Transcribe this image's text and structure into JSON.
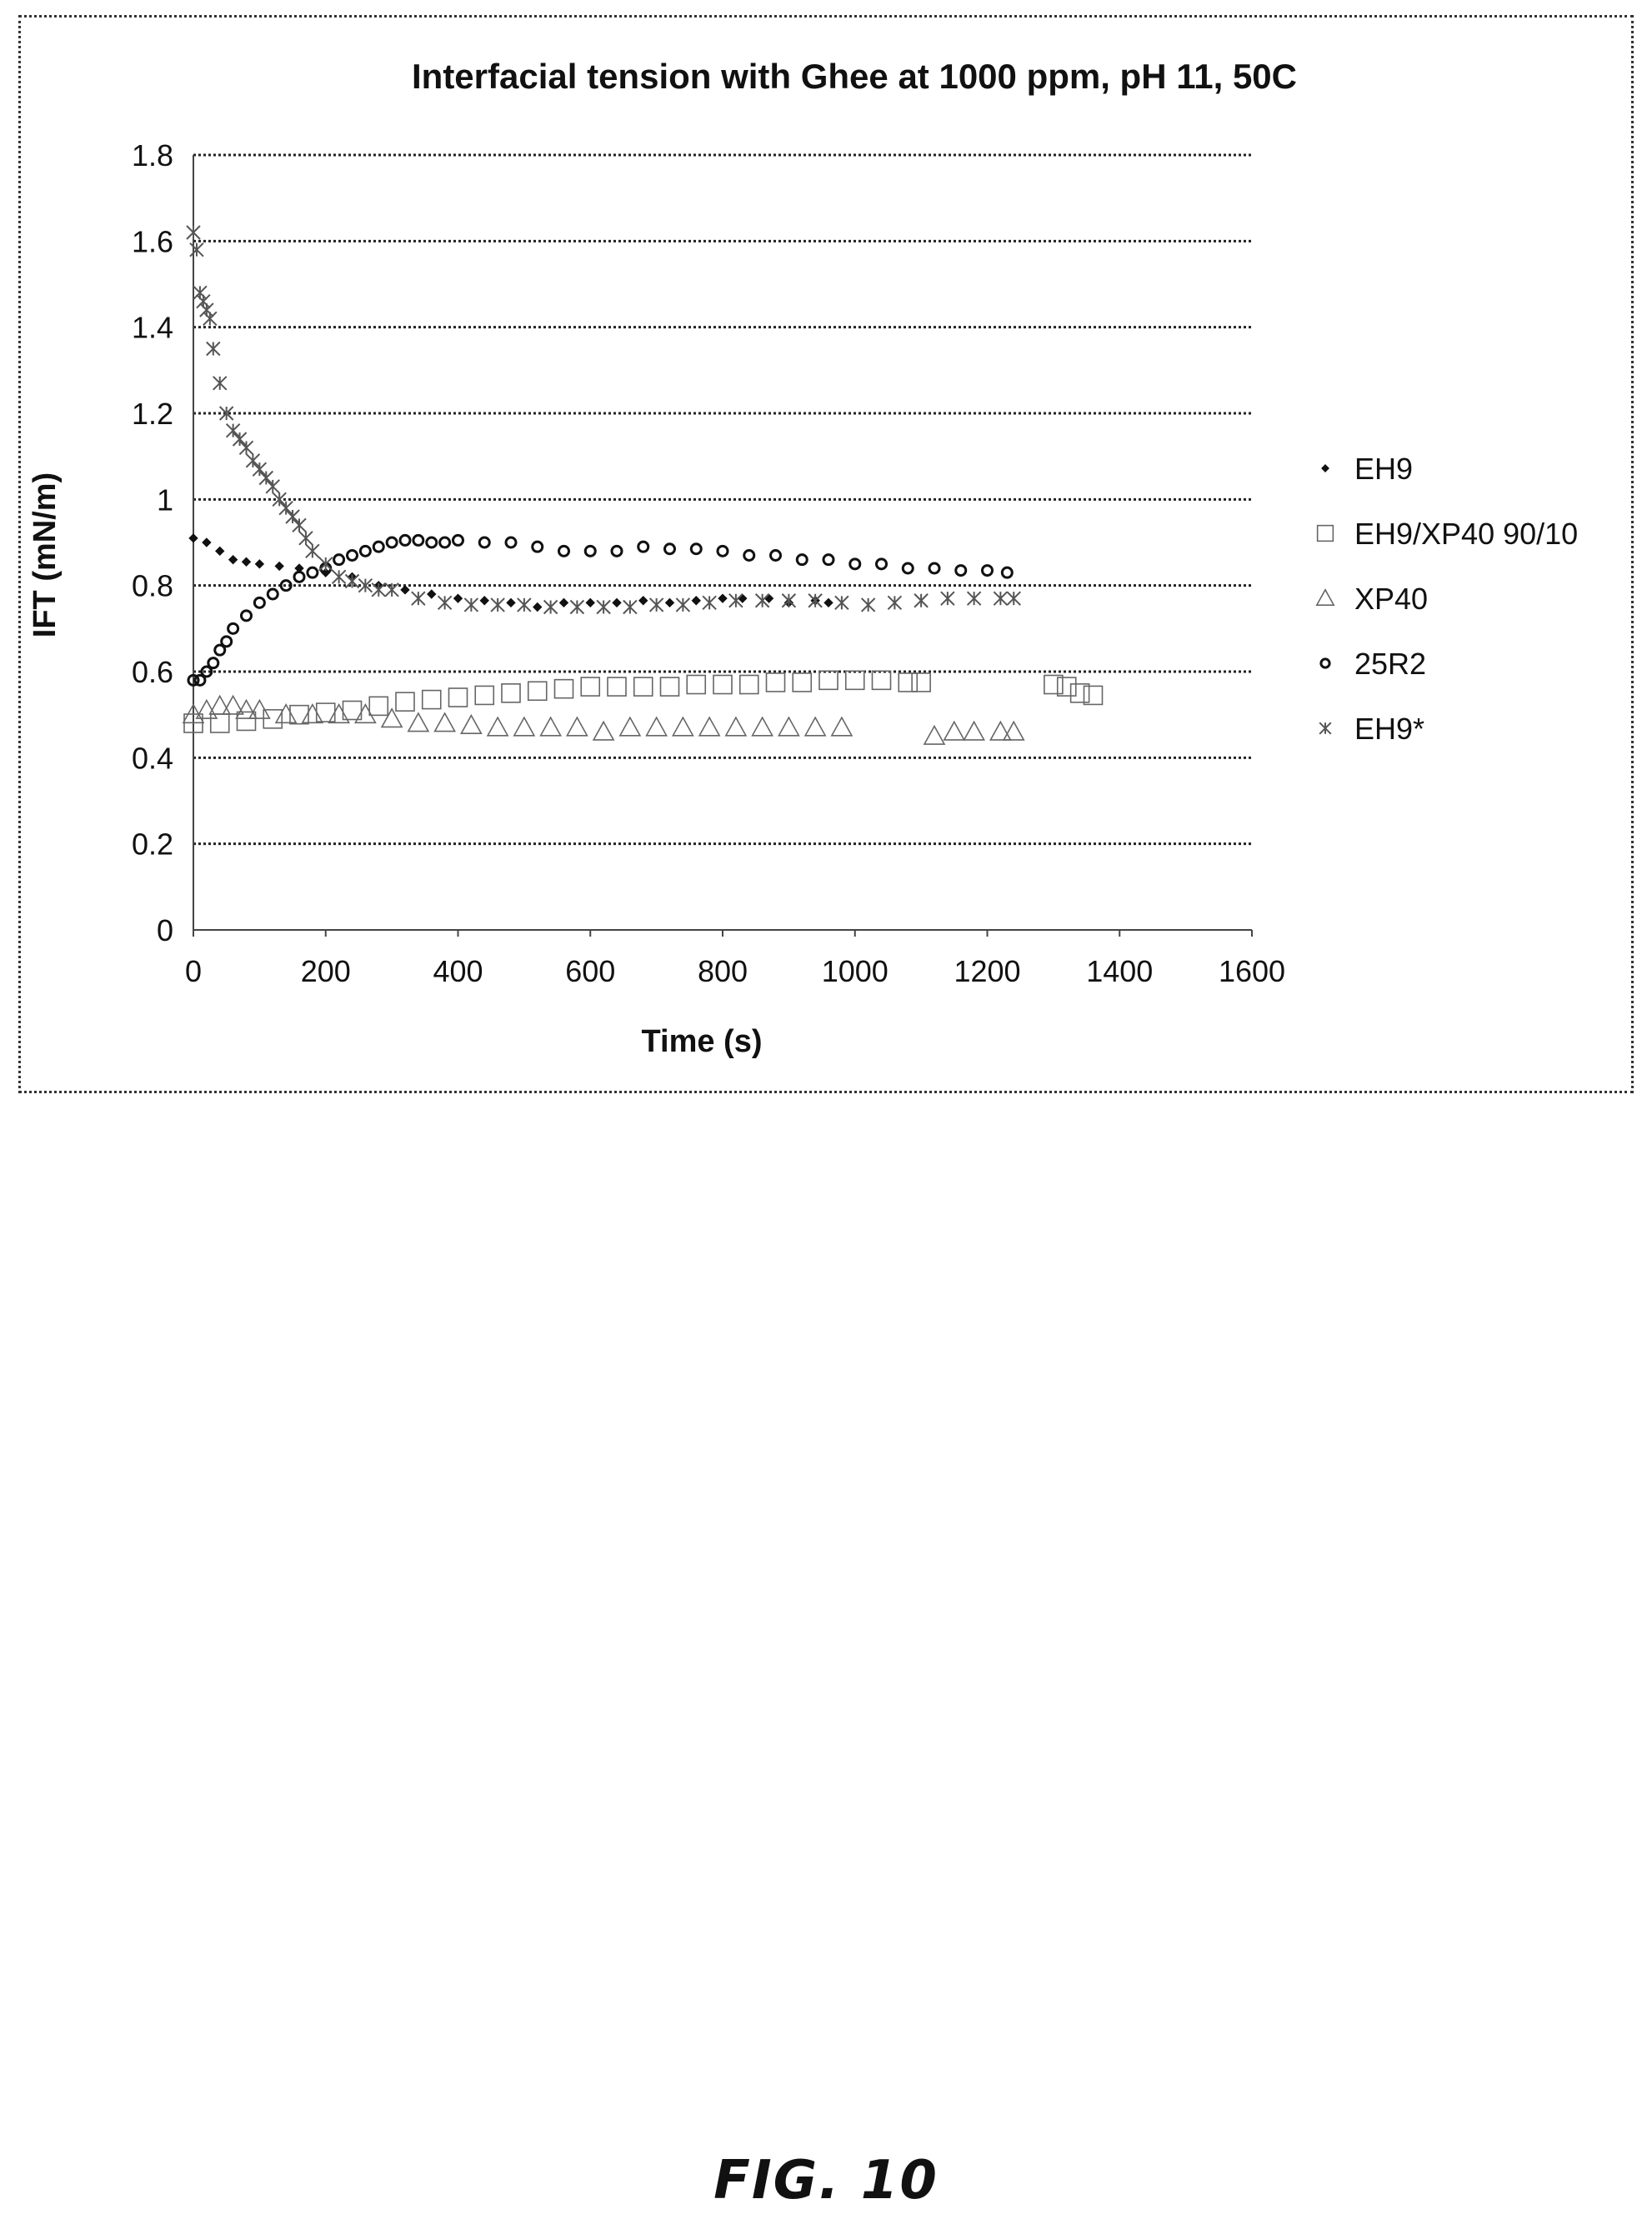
{
  "figure_caption": "FIG. 10",
  "chart_data": {
    "type": "scatter",
    "title": "Interfacial tension with Ghee at 1000 ppm, pH 11, 50C",
    "xlabel": "Time (s)",
    "ylabel": "IFT (mN/m)",
    "xlim": [
      0,
      1600
    ],
    "ylim": [
      0,
      1.8
    ],
    "x_ticks": [
      "0",
      "200",
      "400",
      "600",
      "800",
      "1000",
      "1200",
      "1400",
      "1600"
    ],
    "y_ticks": [
      "0",
      "0.2",
      "0.4",
      "0.6",
      "0.8",
      "1",
      "1.2",
      "1.4",
      "1.6",
      "1.8"
    ],
    "grid": "horizontal dotted",
    "legend_position": "right",
    "series": [
      {
        "name": "EH9",
        "marker": "diamond-filled",
        "x": [
          0,
          20,
          40,
          60,
          80,
          100,
          130,
          160,
          200,
          240,
          280,
          320,
          360,
          400,
          440,
          480,
          520,
          560,
          600,
          640,
          680,
          720,
          760,
          800,
          830,
          870,
          900,
          940,
          960
        ],
        "y": [
          0.91,
          0.9,
          0.88,
          0.86,
          0.855,
          0.85,
          0.845,
          0.84,
          0.83,
          0.82,
          0.8,
          0.79,
          0.78,
          0.77,
          0.765,
          0.76,
          0.75,
          0.76,
          0.76,
          0.76,
          0.765,
          0.76,
          0.765,
          0.77,
          0.77,
          0.77,
          0.76,
          0.765,
          0.76
        ]
      },
      {
        "name": "EH9/XP40 90/10",
        "marker": "square-open",
        "x": [
          0,
          40,
          80,
          120,
          160,
          200,
          240,
          280,
          320,
          360,
          400,
          440,
          480,
          520,
          560,
          600,
          640,
          680,
          720,
          760,
          800,
          840,
          880,
          920,
          960,
          1000,
          1040,
          1080,
          1100,
          1300,
          1320,
          1340,
          1360
        ],
        "y": [
          0.48,
          0.48,
          0.485,
          0.49,
          0.5,
          0.505,
          0.51,
          0.52,
          0.53,
          0.535,
          0.54,
          0.545,
          0.55,
          0.555,
          0.56,
          0.565,
          0.565,
          0.565,
          0.565,
          0.57,
          0.57,
          0.57,
          0.575,
          0.575,
          0.58,
          0.58,
          0.58,
          0.575,
          0.575,
          0.57,
          0.565,
          0.55,
          0.545
        ]
      },
      {
        "name": "XP40",
        "marker": "triangle-open",
        "x": [
          0,
          20,
          40,
          60,
          80,
          100,
          140,
          180,
          220,
          260,
          300,
          340,
          380,
          420,
          460,
          500,
          540,
          580,
          620,
          660,
          700,
          740,
          780,
          820,
          860,
          900,
          940,
          980,
          1120,
          1150,
          1180,
          1220,
          1240
        ],
        "y": [
          0.5,
          0.51,
          0.52,
          0.52,
          0.51,
          0.51,
          0.5,
          0.5,
          0.5,
          0.5,
          0.49,
          0.48,
          0.48,
          0.475,
          0.47,
          0.47,
          0.47,
          0.47,
          0.46,
          0.47,
          0.47,
          0.47,
          0.47,
          0.47,
          0.47,
          0.47,
          0.47,
          0.47,
          0.45,
          0.46,
          0.46,
          0.46,
          0.46
        ]
      },
      {
        "name": "25R2",
        "marker": "circle-open",
        "x": [
          0,
          10,
          20,
          30,
          40,
          50,
          60,
          80,
          100,
          120,
          140,
          160,
          180,
          200,
          220,
          240,
          260,
          280,
          300,
          320,
          340,
          360,
          380,
          400,
          440,
          480,
          520,
          560,
          600,
          640,
          680,
          720,
          760,
          800,
          840,
          880,
          920,
          960,
          1000,
          1040,
          1080,
          1120,
          1160,
          1200,
          1230
        ],
        "y": [
          0.58,
          0.58,
          0.6,
          0.62,
          0.65,
          0.67,
          0.7,
          0.73,
          0.76,
          0.78,
          0.8,
          0.82,
          0.83,
          0.84,
          0.86,
          0.87,
          0.88,
          0.89,
          0.9,
          0.905,
          0.905,
          0.9,
          0.9,
          0.905,
          0.9,
          0.9,
          0.89,
          0.88,
          0.88,
          0.88,
          0.89,
          0.885,
          0.885,
          0.88,
          0.87,
          0.87,
          0.86,
          0.86,
          0.85,
          0.85,
          0.84,
          0.84,
          0.835,
          0.835,
          0.83
        ]
      },
      {
        "name": "EH9*",
        "marker": "asterisk",
        "x": [
          0,
          5,
          10,
          15,
          20,
          25,
          30,
          40,
          50,
          60,
          70,
          80,
          90,
          100,
          110,
          120,
          130,
          140,
          150,
          160,
          170,
          180,
          200,
          220,
          240,
          260,
          280,
          300,
          340,
          380,
          420,
          460,
          500,
          540,
          580,
          620,
          660,
          700,
          740,
          780,
          820,
          860,
          900,
          940,
          980,
          1020,
          1060,
          1100,
          1140,
          1180,
          1220,
          1240
        ],
        "y": [
          1.62,
          1.58,
          1.48,
          1.46,
          1.44,
          1.42,
          1.35,
          1.27,
          1.2,
          1.16,
          1.14,
          1.12,
          1.09,
          1.07,
          1.05,
          1.03,
          1.0,
          0.98,
          0.96,
          0.94,
          0.91,
          0.88,
          0.85,
          0.82,
          0.81,
          0.8,
          0.79,
          0.79,
          0.77,
          0.76,
          0.755,
          0.755,
          0.755,
          0.75,
          0.75,
          0.75,
          0.75,
          0.755,
          0.755,
          0.76,
          0.765,
          0.765,
          0.765,
          0.765,
          0.76,
          0.755,
          0.76,
          0.765,
          0.77,
          0.77,
          0.77,
          0.77
        ]
      }
    ]
  }
}
